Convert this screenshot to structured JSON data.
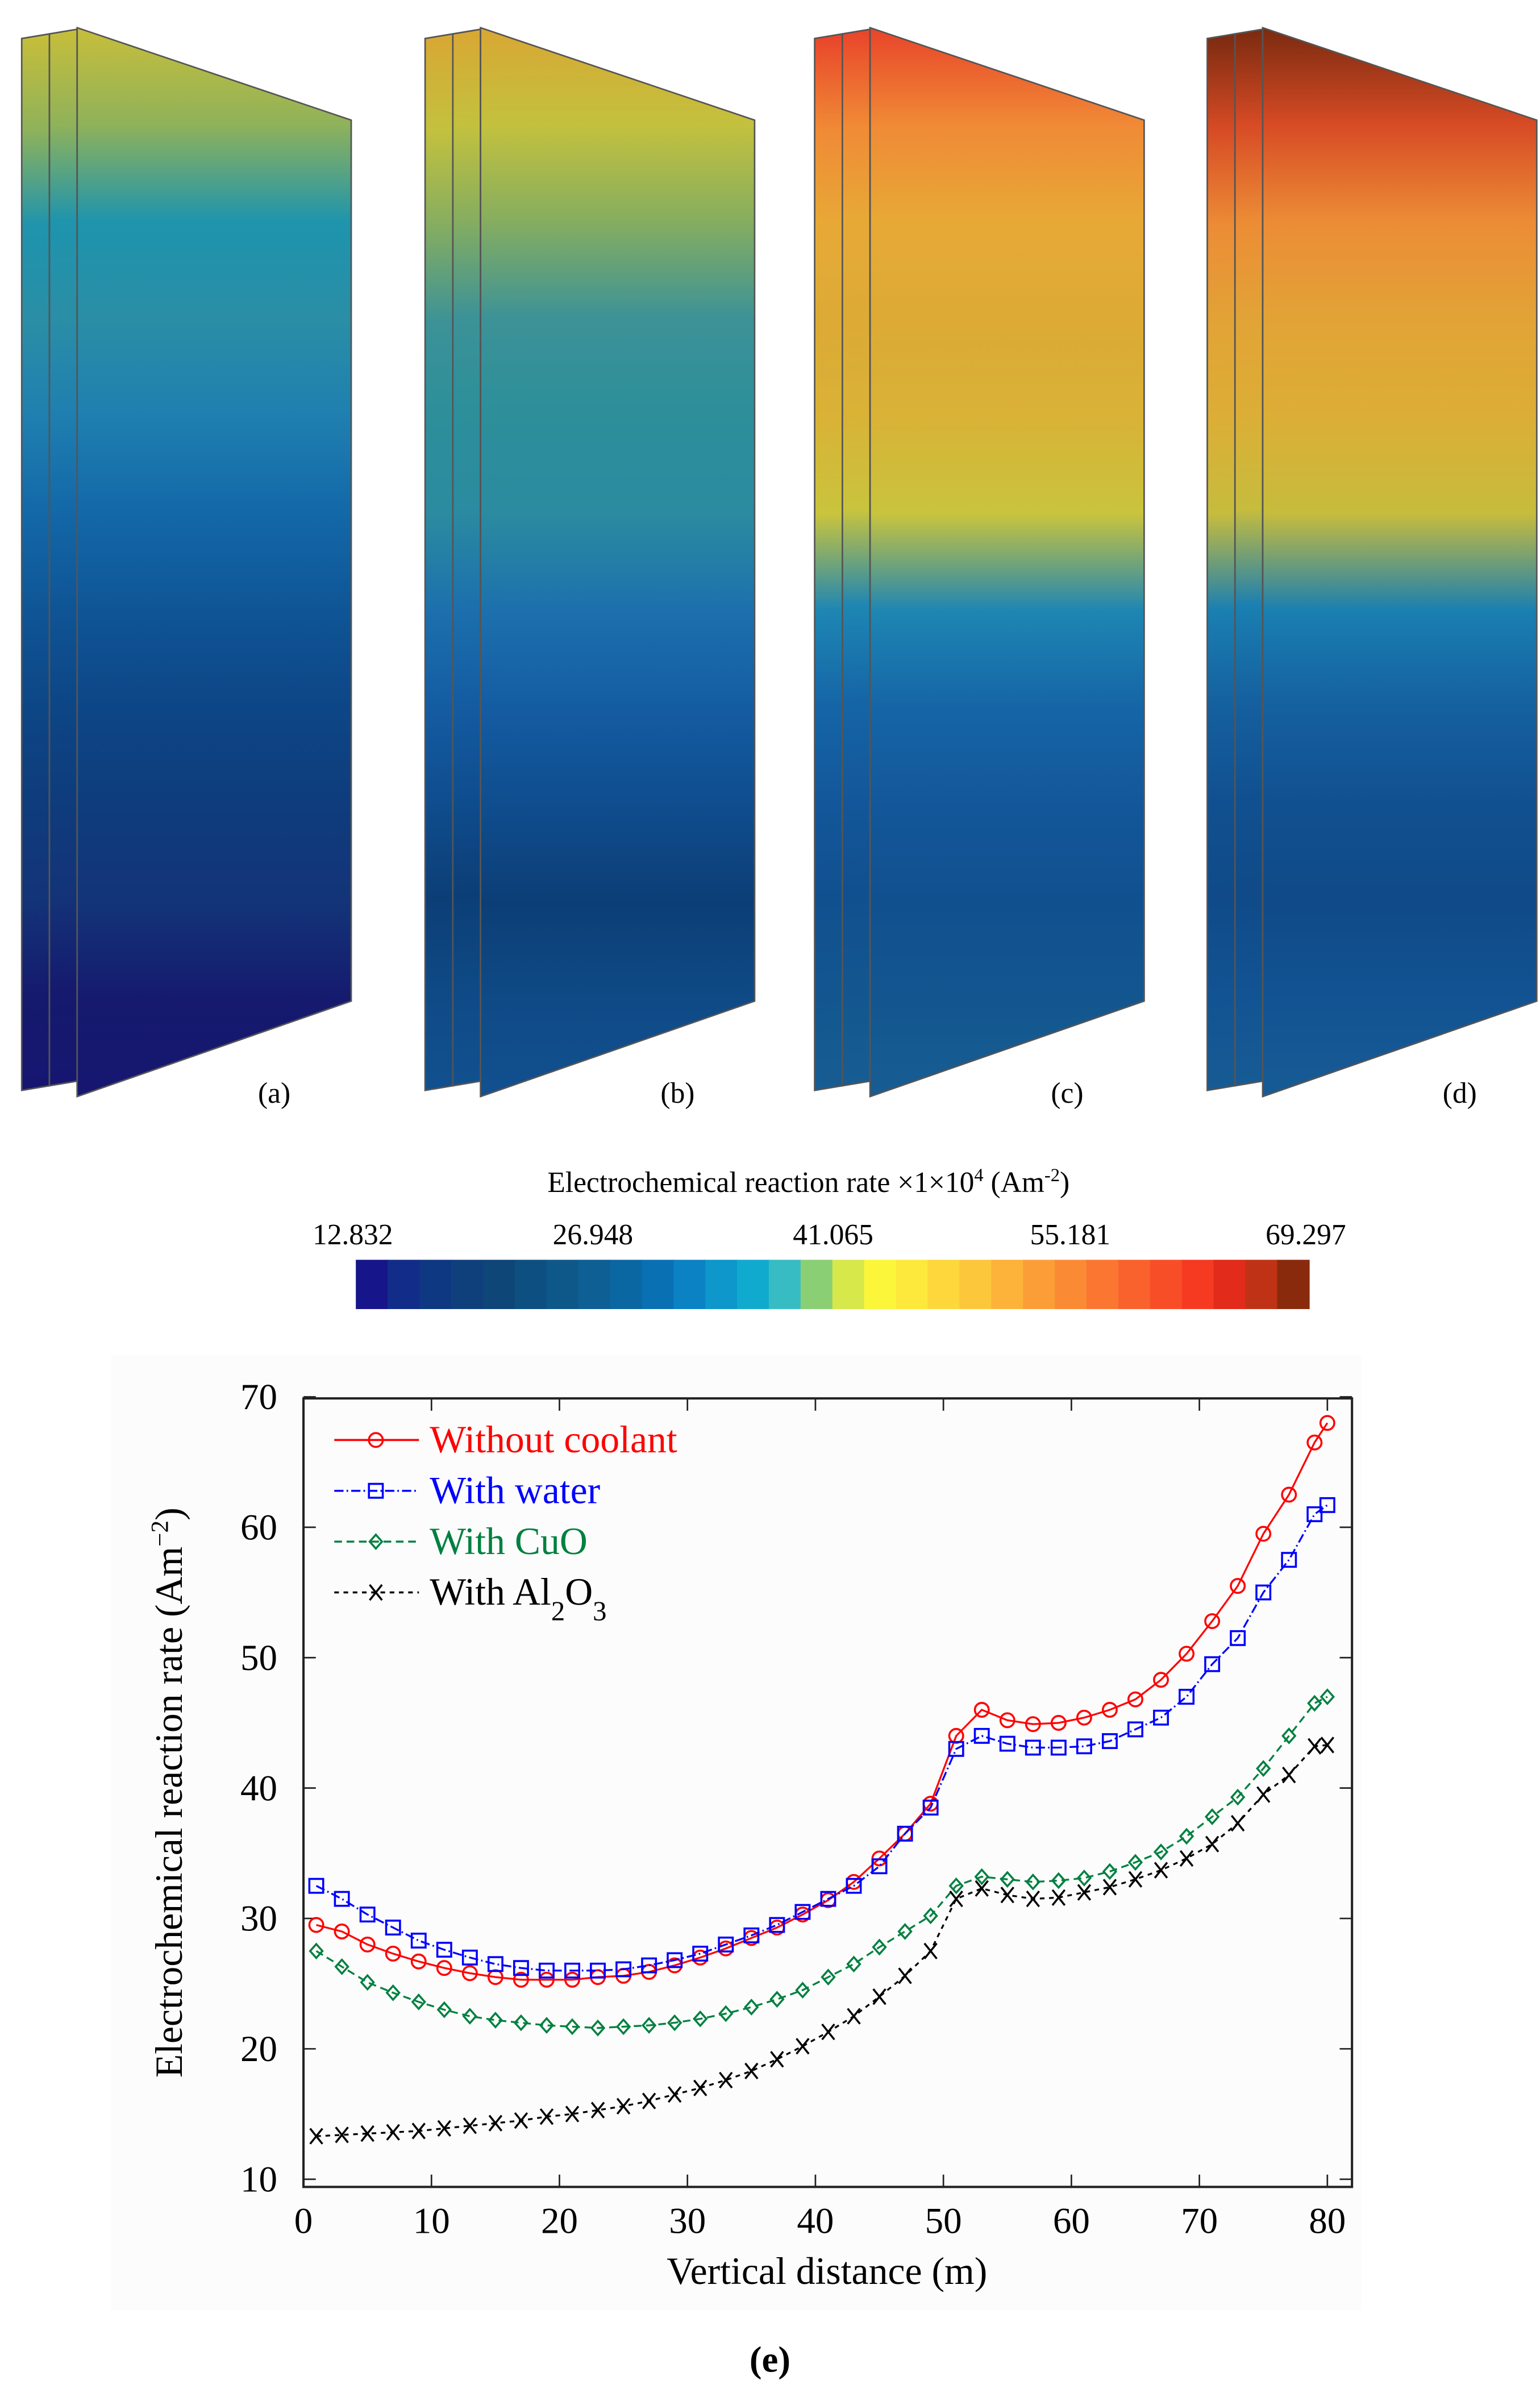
{
  "panels": [
    {
      "label": "(a)",
      "colors": [
        "#c7be3a",
        "#8fb25a",
        "#1e94ad",
        "#2a8ea6",
        "#1f7fb0",
        "#1368a8",
        "#0f5596",
        "#0d4686",
        "#0e3c7c",
        "#133478",
        "#151a6e",
        "#161670"
      ]
    },
    {
      "label": "(b)",
      "colors": [
        "#d8a734",
        "#c3c13e",
        "#85ad60",
        "#3c9297",
        "#2c8f9a",
        "#2b8ba0",
        "#1c70ad",
        "#145ca2",
        "#0f4d8e",
        "#0c3e76",
        "#0f4a86",
        "#11508f"
      ]
    },
    {
      "label": "(c)",
      "colors": [
        "#e8442a",
        "#f08a36",
        "#e7a936",
        "#dcaa35",
        "#d9b236",
        "#c9c43d",
        "#1e86b3",
        "#1565a6",
        "#13579a",
        "#11508f",
        "#13568f",
        "#175d93"
      ]
    },
    {
      "label": "(d)",
      "colors": [
        "#7a2a10",
        "#d74b25",
        "#ec8c36",
        "#e2a336",
        "#dcae36",
        "#c6bc3d",
        "#1a7fb1",
        "#15609f",
        "#115090",
        "#104a88",
        "#125393",
        "#175b94"
      ]
    }
  ],
  "colorbar": {
    "title": "Electrochemical reaction rate ×1×10",
    "title_sup": "4",
    "title_unit": " (Am",
    "title_unit_sup": "-2",
    "title_close": ")",
    "ticks": [
      "12.832",
      "26.948",
      "41.065",
      "55.181",
      "69.297"
    ],
    "colors": [
      "#17158a",
      "#122d89",
      "#0f3883",
      "#0f407c",
      "#0e4678",
      "#0d4f80",
      "#0e5789",
      "#0d5f94",
      "#0b67a2",
      "#0a70b4",
      "#0a82c4",
      "#0d97cb",
      "#10aacf",
      "#37bcc4",
      "#8bcf74",
      "#d6e84a",
      "#fbf63a",
      "#fde83c",
      "#fdd73c",
      "#fdc73b",
      "#fdb23a",
      "#fc9e38",
      "#fb8a35",
      "#fa7631",
      "#f9622d",
      "#f84e28",
      "#f63a22",
      "#e22b1a",
      "#c03216",
      "#8a2a0c"
    ]
  },
  "chart_data": {
    "type": "line",
    "xlabel": "Vertical distance (m)",
    "ylabel": "Electrochemical reaction rate (Am",
    "ylabel_sup": "−2",
    "ylabel_close": ")",
    "xlim": [
      0,
      80
    ],
    "ylim": [
      10,
      70
    ],
    "xticks": [
      "0",
      "10",
      "20",
      "30",
      "40",
      "50",
      "60",
      "70",
      "80"
    ],
    "yticks": [
      "10",
      "20",
      "30",
      "40",
      "50",
      "60",
      "70"
    ],
    "caption": "(e)",
    "legend_position": "top-left",
    "x": [
      1,
      3,
      5,
      7,
      9,
      11,
      13,
      15,
      17,
      19,
      21,
      23,
      25,
      27,
      29,
      31,
      33,
      35,
      37,
      39,
      41,
      43,
      45,
      47,
      49,
      51,
      53,
      55,
      57,
      59,
      61,
      63,
      65,
      67,
      69,
      71,
      73,
      75,
      77,
      79,
      80
    ],
    "series": [
      {
        "name": "Without coolant",
        "color": "#ff0000",
        "marker": "circle",
        "dash": "solid",
        "values": [
          29.5,
          29,
          28,
          27.3,
          26.7,
          26.2,
          25.8,
          25.5,
          25.3,
          25.3,
          25.3,
          25.5,
          25.6,
          25.9,
          26.4,
          27,
          27.7,
          28.5,
          29.3,
          30.3,
          31.4,
          32.8,
          34.6,
          36.5,
          38.8,
          44,
          46,
          45.2,
          44.9,
          45,
          45.4,
          46,
          46.8,
          48.3,
          50.3,
          52.8,
          55.5,
          59.5,
          62.5,
          66.5,
          68
        ]
      },
      {
        "name": "With water",
        "color": "#0000ff",
        "marker": "square",
        "dash": "dashdot",
        "values": [
          32.5,
          31.5,
          30.3,
          29.3,
          28.3,
          27.6,
          27,
          26.5,
          26.2,
          26,
          26,
          26,
          26.1,
          26.4,
          26.8,
          27.3,
          28,
          28.7,
          29.5,
          30.5,
          31.5,
          32.5,
          34,
          36.5,
          38.5,
          43,
          44,
          43.4,
          43.1,
          43.1,
          43.2,
          43.6,
          44.5,
          45.4,
          47,
          49.5,
          51.5,
          55,
          57.5,
          61,
          61.7
        ]
      },
      {
        "name": "With CuO",
        "color": "#008040",
        "marker": "diamond",
        "dash": "dashed",
        "values": [
          27.5,
          26.3,
          25.1,
          24.3,
          23.6,
          23,
          22.5,
          22.2,
          22,
          21.8,
          21.7,
          21.6,
          21.7,
          21.8,
          22,
          22.3,
          22.7,
          23.2,
          23.8,
          24.5,
          25.5,
          26.5,
          27.8,
          29,
          30.2,
          32.5,
          33.2,
          33,
          32.8,
          32.9,
          33.1,
          33.6,
          34.3,
          35.1,
          36.3,
          37.8,
          39.3,
          41.5,
          44,
          46.5,
          47
        ]
      },
      {
        "name": "With Al",
        "sub1": "2",
        "mid": "O",
        "sub2": "3",
        "color": "#000000",
        "marker": "cross",
        "dash": "dotted",
        "values": [
          13.3,
          13.4,
          13.5,
          13.6,
          13.7,
          13.9,
          14.1,
          14.3,
          14.5,
          14.8,
          15,
          15.3,
          15.6,
          16,
          16.5,
          17,
          17.6,
          18.3,
          19.2,
          20.2,
          21.3,
          22.5,
          24,
          25.6,
          27.5,
          31.5,
          32.3,
          31.8,
          31.5,
          31.6,
          32,
          32.4,
          33,
          33.7,
          34.6,
          35.7,
          37.3,
          39.5,
          41,
          43.2,
          43.3
        ]
      }
    ]
  }
}
